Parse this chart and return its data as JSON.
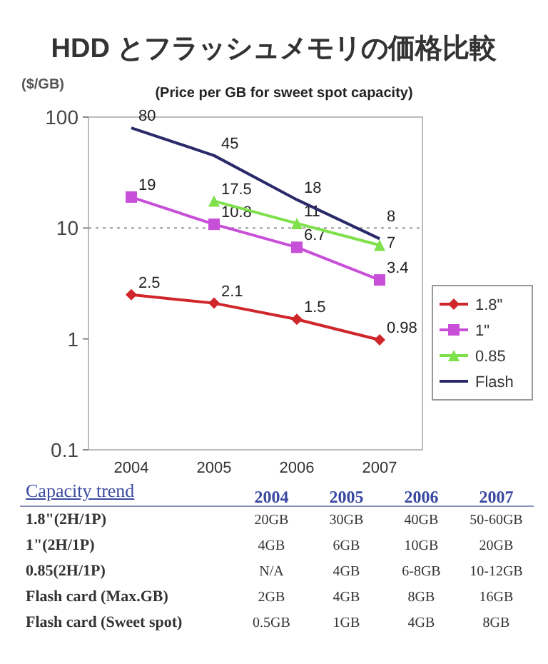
{
  "chart_data": [
    {
      "type": "line",
      "title": "HDD とフラッシュメモリの価格比較",
      "subtitle": "(Price per GB for sweet spot capacity)",
      "ylabel": "($/GB)",
      "categories": [
        "2004",
        "2005",
        "2006",
        "2007"
      ],
      "log": true,
      "ylim": [
        0.1,
        100
      ],
      "yticks": [
        0.1,
        1,
        10,
        100
      ],
      "data_labels": true,
      "legend": "right",
      "ref_lines": [
        {
          "axis": "y",
          "value": 10,
          "line_style": "dotted",
          "color": "#999999"
        }
      ],
      "series": [
        {
          "name": "1.8\"",
          "color": "#d0262b",
          "marker": "diamond",
          "values": [
            2.5,
            2.1,
            1.5,
            0.98
          ]
        },
        {
          "name": "1\"",
          "color": "#c84fd8",
          "marker": "square",
          "values": [
            19,
            10.8,
            6.7,
            3.4
          ]
        },
        {
          "name": "0.85",
          "color": "#7ee04a",
          "marker": "triangle",
          "values": [
            null,
            17.5,
            11,
            7
          ]
        },
        {
          "name": "Flash",
          "color": "#2a2a6a",
          "marker": "none",
          "values": [
            80,
            45,
            18,
            8
          ]
        }
      ]
    },
    {
      "type": "other",
      "title": "Capacity trend",
      "y_categories": [
        "1.8\"(2H/1P)",
        "1\"(2H/1P)",
        "0.85(2H/1P)",
        "Flash card (Max.GB)",
        "Flash card (Sweet spot)"
      ],
      "cell_labels": [
        [
          "20GB",
          "30GB",
          "40GB",
          "50-60GB"
        ],
        [
          "4GB",
          "6GB",
          "10GB",
          "20GB"
        ],
        [
          "N/A",
          "4GB",
          "6-8GB",
          "10-12GB"
        ],
        [
          "2GB",
          "4GB",
          "8GB",
          "16GB"
        ],
        [
          "0.5GB",
          "1GB",
          "4GB",
          "8GB"
        ]
      ]
    }
  ]
}
